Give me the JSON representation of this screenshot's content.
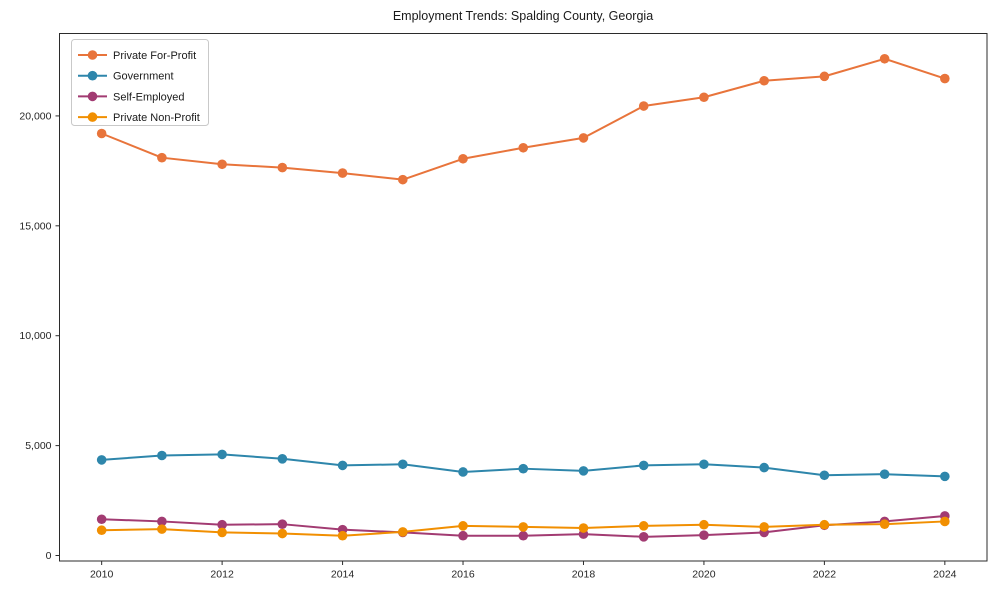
{
  "chart_data": {
    "type": "line",
    "title": "Employment Trends: Spalding County, Georgia",
    "xlabel": "",
    "ylabel": "",
    "x": [
      2010,
      2011,
      2012,
      2013,
      2014,
      2015,
      2016,
      2017,
      2018,
      2019,
      2020,
      2021,
      2022,
      2023,
      2024
    ],
    "series": [
      {
        "name": "Private For-Profit",
        "color": "#E8743B",
        "values": [
          19200,
          18100,
          17800,
          17650,
          17400,
          17100,
          18050,
          18550,
          19000,
          20450,
          20850,
          21600,
          21800,
          22600,
          21700
        ]
      },
      {
        "name": "Government",
        "color": "#2E86AB",
        "values": [
          4350,
          4550,
          4600,
          4400,
          4100,
          4150,
          3800,
          3950,
          3850,
          4100,
          4150,
          4000,
          3650,
          3700,
          3600
        ]
      },
      {
        "name": "Self-Employed",
        "color": "#A23B72",
        "values": [
          1650,
          1550,
          1400,
          1425,
          1175,
          1050,
          900,
          900,
          975,
          850,
          925,
          1050,
          1375,
          1550,
          1800
        ]
      },
      {
        "name": "Private Non-Profit",
        "color": "#F18F01",
        "values": [
          1150,
          1200,
          1050,
          1000,
          900,
          1075,
          1350,
          1300,
          1250,
          1350,
          1400,
          1300,
          1400,
          1425,
          1550
        ]
      }
    ],
    "xticks": [
      2010,
      2012,
      2014,
      2016,
      2018,
      2020,
      2022,
      2024
    ],
    "yticks": [
      0,
      5000,
      10000,
      15000,
      20000
    ],
    "ytick_labels": [
      "0",
      "5,000",
      "10,000",
      "15,000",
      "20,000"
    ],
    "xlim": [
      2009.3,
      2024.7
    ],
    "ylim": [
      -250,
      23750
    ],
    "grid": false,
    "legend_position": "upper left",
    "frame_color": "#2b2b2b"
  }
}
